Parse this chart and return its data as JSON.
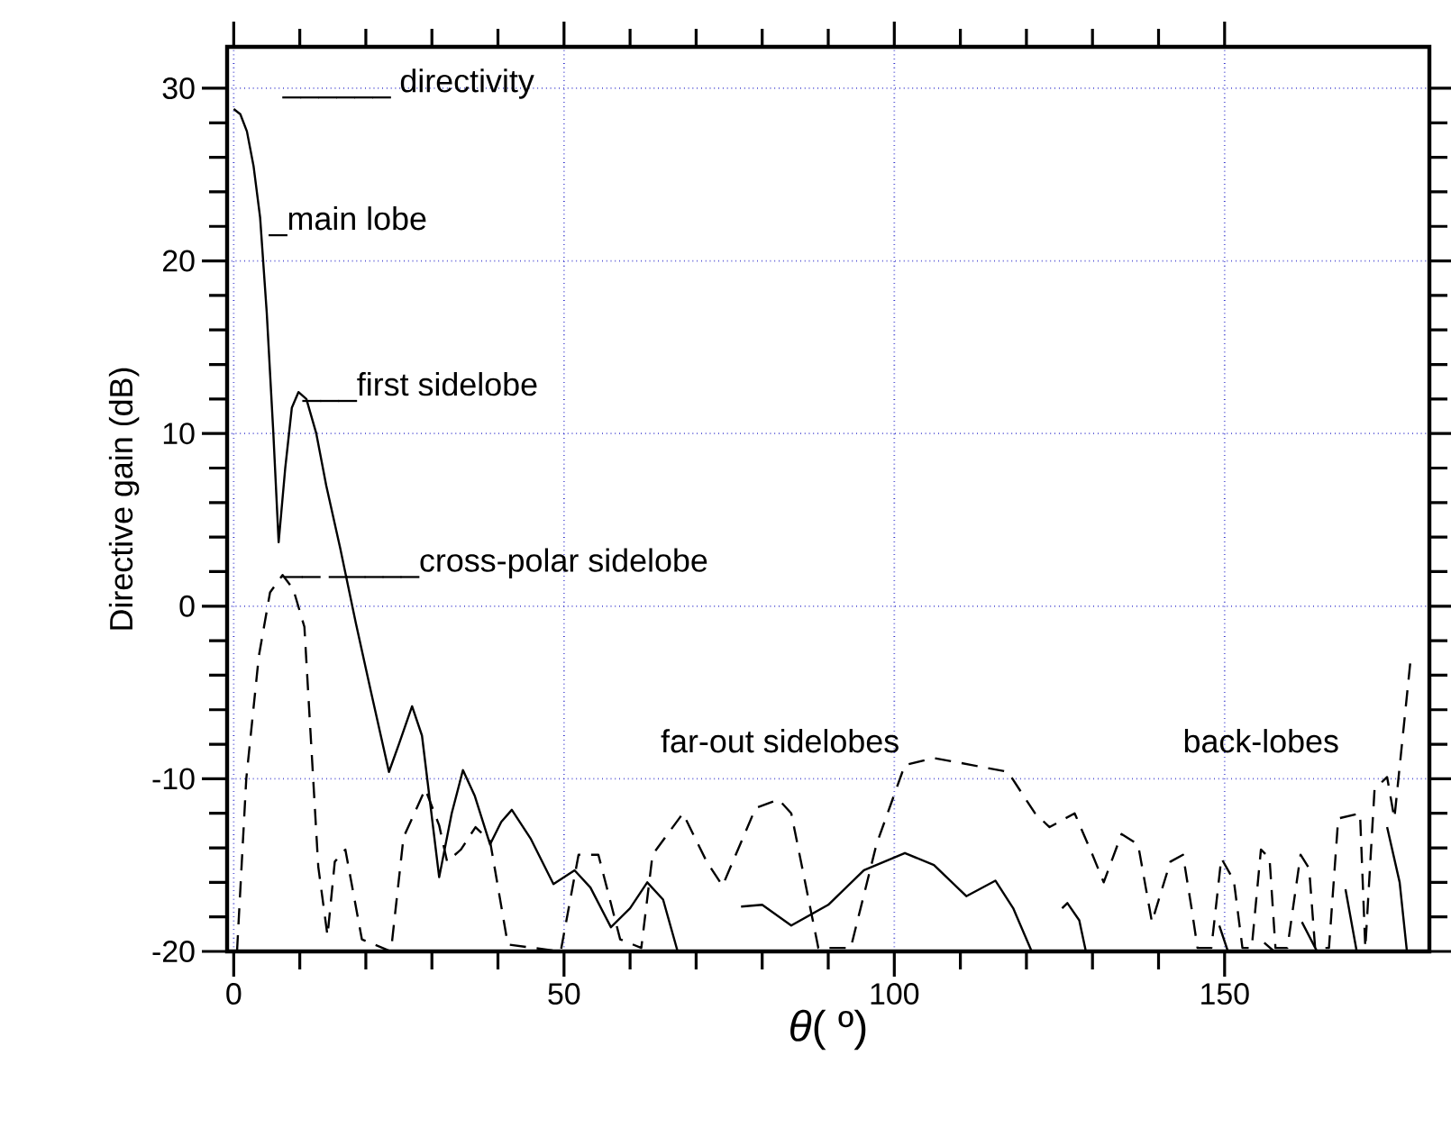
{
  "chart_data": {
    "type": "line",
    "xlabel": "*θ*( º)",
    "ylabel": "Directive gain (dB)",
    "xlim": [
      -1,
      181
    ],
    "ylim": [
      -20,
      32.4
    ],
    "xticks": [
      0,
      50,
      100,
      150
    ],
    "yticks": [
      -20,
      -10,
      0,
      10,
      20,
      30
    ],
    "grid": true,
    "series": [
      {
        "color": "#000000",
        "line_style": "solid",
        "x": [
          0,
          1,
          2,
          3,
          4,
          5,
          6,
          6.8,
          7.8,
          8.8,
          9.8,
          11,
          12.5,
          14,
          16.1,
          18.5,
          20.8,
          23.5,
          25,
          27,
          28.5,
          31.1,
          33,
          34.7,
          36.5,
          38.8,
          40.5,
          42.1,
          45,
          48.4,
          51.6,
          54,
          57.1,
          60,
          62.6,
          65,
          67.2,
          73,
          76.8,
          80,
          84.4,
          90,
          95.4,
          101.6,
          106,
          110.9,
          115.3,
          118,
          120.8,
          122.5,
          125.4,
          126.2,
          128,
          129,
          145.4,
          149.2,
          150.5,
          154.5,
          156,
          157.5,
          159.5,
          161.7,
          164,
          166.7,
          168.3,
          170,
          172,
          174.6,
          176.5,
          177.6
        ],
        "values": [
          28.8,
          28.5,
          27.5,
          25.5,
          22.5,
          17,
          10,
          3.7,
          8,
          11.5,
          12.4,
          12,
          10,
          7,
          3.4,
          -1,
          -5,
          -9.6,
          -8,
          -5.8,
          -7.5,
          -15.7,
          -12,
          -9.5,
          -11,
          -13.8,
          -12.5,
          -11.8,
          -13.5,
          -16.1,
          -15.3,
          -16.3,
          -18.6,
          -17.5,
          -16,
          -17,
          -20,
          null,
          -17.4,
          -17.3,
          -18.5,
          -17.3,
          -15.3,
          -14.3,
          -15,
          -16.8,
          -15.9,
          -17.5,
          -20,
          null,
          -17.5,
          -17.2,
          -18.2,
          -20,
          null,
          -18.5,
          -20,
          null,
          -19.5,
          -20,
          null,
          -18.3,
          -20,
          null,
          -16.4,
          -20,
          null,
          -12.8,
          -16,
          -20
        ]
      },
      {
        "color": "#000000",
        "line_style": "dashed",
        "x": [
          0.5,
          1.9,
          3.8,
          5.5,
          7.4,
          9,
          10.7,
          12.8,
          14.2,
          15.3,
          16.9,
          19.4,
          23.8,
          25.7,
          29,
          31.1,
          32.3,
          34.4,
          36.6,
          38.8,
          41.5,
          49.5,
          52.2,
          55.2,
          58.5,
          61.7,
          63.4,
          68,
          71.6,
          74,
          79,
          82.5,
          84.4,
          88.5,
          93.4,
          97.3,
          101.6,
          106,
          111.7,
          117.2,
          121.3,
          123.5,
          127.3,
          130,
          131.7,
          134.4,
          136.9,
          139,
          141.8,
          143.7,
          145,
          145.9,
          148,
          149.5,
          151.4,
          152.7,
          154.1,
          155.5,
          156.8,
          157.7,
          159.5,
          161.5,
          162.8,
          163.7,
          165.8,
          167.2,
          170.5,
          171.3,
          172.7,
          174.6,
          175.7,
          178.1,
          179
        ],
        "values": [
          -20,
          -10,
          -2.9,
          0.8,
          1.8,
          1,
          -1.2,
          -15.1,
          -19.1,
          -14.8,
          -14.1,
          -19.3,
          -20,
          -13.4,
          -10.6,
          -12.7,
          -14.8,
          -14.1,
          -12.8,
          -13.6,
          -19.6,
          -20,
          -14.4,
          -14.4,
          -19.3,
          -19.8,
          -14.4,
          -12,
          -14.8,
          -16.2,
          -11.7,
          -11.2,
          -12,
          -19.8,
          -19.8,
          -13.8,
          -9.2,
          -8.8,
          -9.2,
          -9.6,
          -12,
          -12.8,
          -12,
          -14.4,
          -16,
          -13.2,
          -13.8,
          -18.3,
          -14.8,
          -14.4,
          -17.5,
          -19.8,
          -19.8,
          -14.6,
          -15.9,
          -19.8,
          -19.8,
          -14.1,
          -14.6,
          -19.8,
          -19.8,
          -14.4,
          -15.2,
          -19.8,
          -19.8,
          -12.3,
          -12,
          -19.8,
          -10.6,
          -9.9,
          -12.3,
          -3.3,
          -3
        ]
      }
    ],
    "annotations": [
      "______ directivity",
      {
        "text": "_main lobe",
        "x": 5.3,
        "y": 21.8
      },
      {
        "text": "___first sidelobe",
        "x": 10.4,
        "y": 12.2
      },
      {
        "text": "__ _____cross-polar sidelobe",
        "x": 7.6,
        "y": 2
      },
      "far-out sidelobes",
      "back-lobes"
    ]
  }
}
